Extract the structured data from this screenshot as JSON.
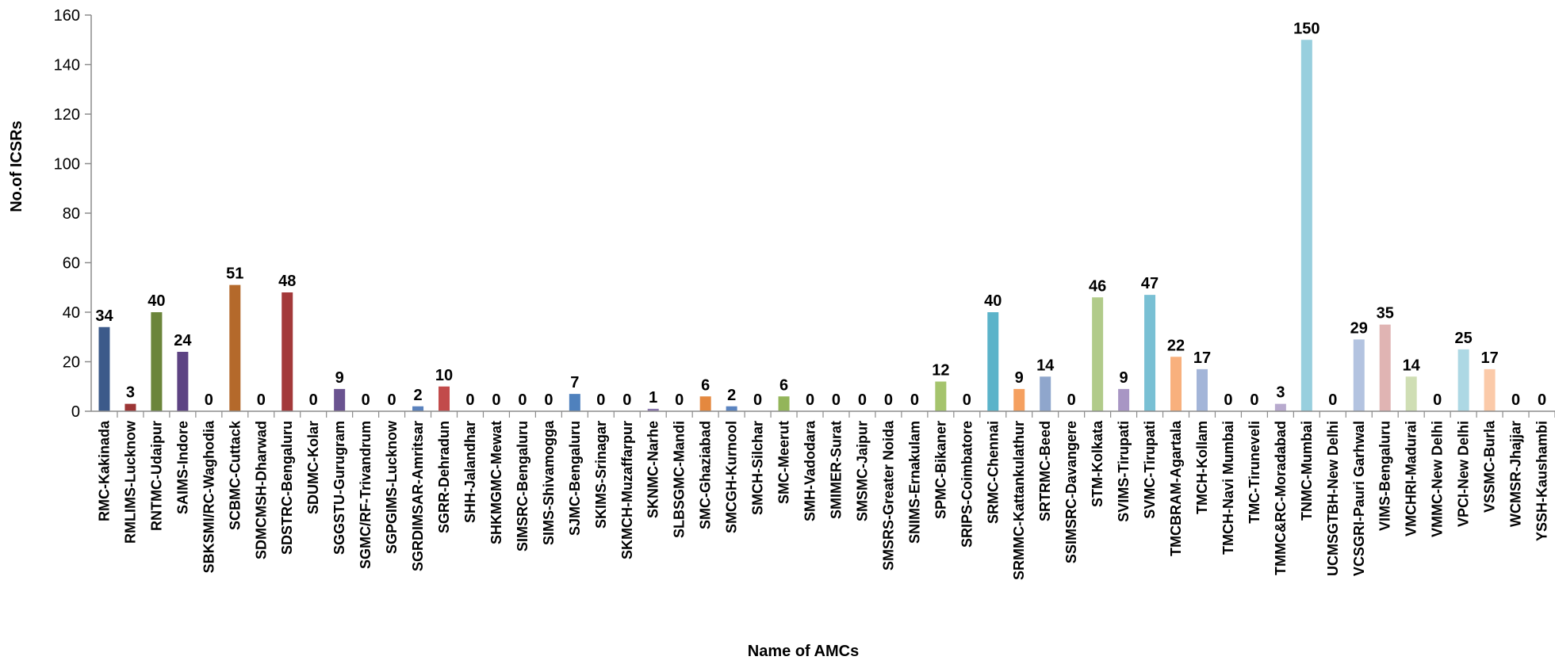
{
  "chart_data": {
    "type": "bar",
    "title": "",
    "xlabel": "Name of AMCs",
    "ylabel": "No.of ICSRs",
    "ylim": [
      0,
      160
    ],
    "yticks": [
      0,
      20,
      40,
      60,
      80,
      100,
      120,
      140,
      160
    ],
    "grid": false,
    "legend": "none",
    "categories": [
      "RMC-Kakinada",
      "RMLIMS-Lucknow",
      "RNTMC-Udaipur",
      "SAIMS-Indore",
      "SBKSMI/RC-Waghodia",
      "SCBMC-Cuttack",
      "SDMCMSH-Dharwad",
      "SDSTRC-Bengaluru",
      "SDUMC-Kolar",
      "SGGSTU-Gurugram",
      "SGMC/RF-Trivandrum",
      "SGPGIMS-Lucknow",
      "SGRDIMSAR-Amritsar",
      "SGRR-Dehradun",
      "SHH-Jalandhar",
      "SHKMGMC-Mewat",
      "SIMSRC-Bengaluru",
      "SIMS-Shivamogga",
      "SJMC-Bengaluru",
      "SKIMS-Srinagar",
      "SKMCH-Muzaffarpur",
      "SKNMC-Narhe",
      "SLBSGMC-Mandi",
      "SMC-Ghaziabad",
      "SMCGH-Kurnool",
      "SMCH-Silchar",
      "SMC-Meerut",
      "SMH-Vadodara",
      "SMIMER-Surat",
      "SMSMC-Jaipur",
      "SMSRS-Greater Noida",
      "SNIMS-Ernakulam",
      "SPMC-Bikaner",
      "SRIPS-Coimbatore",
      "SRMC-Chennai",
      "SRMMC-Kattankulathur",
      "SRTRMC-Beed",
      "SSIMSRC-Davangere",
      "STM-Kolkata",
      "SVIMS-Tirupati",
      "SVMC-Tirupati",
      "TMCBRAM-Agartala",
      "TMCH-Kollam",
      "TMCH-Navi Mumbai",
      "TMC-Tiruneveli",
      "TMMC&RC-Moradabad",
      "TNMC-Mumbai",
      "UCMSGTBH-New Delhi",
      "VCSGRI-Pauri Garhwal",
      "VIMS-Bengaluru",
      "VMCHRI-Madurai",
      "VMMC-New Delhi",
      "VPCI-New Delhi",
      "VSSMC-Burla",
      "WCMSR-Jhajjar",
      "YSSH-Kaushambi"
    ],
    "values": [
      34,
      3,
      40,
      24,
      0,
      51,
      0,
      48,
      0,
      9,
      0,
      0,
      2,
      10,
      0,
      0,
      0,
      0,
      7,
      0,
      0,
      1,
      0,
      6,
      2,
      0,
      6,
      0,
      0,
      0,
      0,
      0,
      12,
      0,
      40,
      9,
      14,
      0,
      46,
      9,
      47,
      22,
      17,
      0,
      0,
      3,
      150,
      0,
      29,
      35,
      14,
      0,
      25,
      17,
      0,
      0
    ],
    "colors": [
      "#3C5A8A",
      "#9C3535",
      "#6B853A",
      "#5D4383",
      "#2F8DA8",
      "#B4692B",
      "#44699D",
      "#A3393A",
      "#7E9B45",
      "#6A5390",
      "#3BA2BF",
      "#D0803A",
      "#5A82BD",
      "#C24B4B",
      "#9BBB59",
      "#8064A2",
      "#4BACC6",
      "#F79646",
      "#4F81BD",
      "#C0504D",
      "#9BBB59",
      "#8B78AE",
      "#4BACC6",
      "#E4883F",
      "#5B84C0",
      "#C65A58",
      "#93B55A",
      "#8F7AB5",
      "#5AB4CB",
      "#F39A55",
      "#6B91C8",
      "#CB6B6A",
      "#A5C46D",
      "#9785BA",
      "#5BB3C9",
      "#F5A060",
      "#8FA6CC",
      "#D08A8A",
      "#B1CB8A",
      "#A896C4",
      "#79C0D4",
      "#F8B07D",
      "#A3B5D8",
      "#D8A2A1",
      "#C2D6A2",
      "#B8AACE",
      "#98CFDE",
      "#F9BE95",
      "#B3C3E0",
      "#E0B4B3",
      "#CFDEB4",
      "#C6B9D8",
      "#ADD8E4",
      "#FBCAA9",
      "#C1CEE6",
      "#E7C5C4"
    ]
  }
}
